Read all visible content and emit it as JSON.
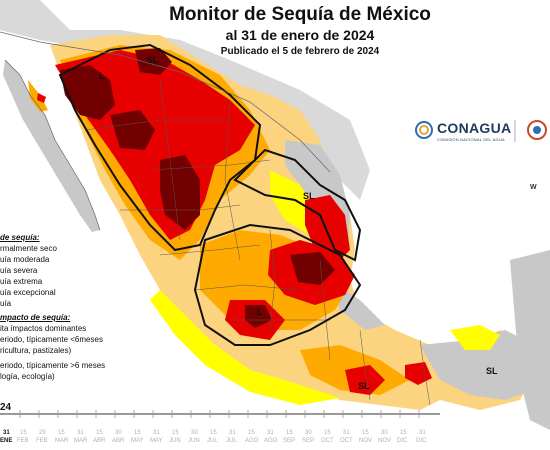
{
  "header": {
    "title": "Monitor de Sequía de México",
    "date": "al 31 de enero de 2024",
    "published": "Publicado el 5 de febrero de 2024"
  },
  "logo": {
    "name": "CONAGUA",
    "subtitle": "COMISIÓN NACIONAL DEL AGUA"
  },
  "legend": {
    "intensity_heading": "de sequía:",
    "intensity_items": [
      {
        "label": "rmalmente seco",
        "color": "#ffff00"
      },
      {
        "label": "uía moderada",
        "color": "#fcd37f"
      },
      {
        "label": "uía severa",
        "color": "#ffaa00"
      },
      {
        "label": "uía extrema",
        "color": "#e60000"
      },
      {
        "label": "uía excepcional",
        "color": "#730000"
      },
      {
        "label": "uía",
        "color": "#8a8a8a"
      }
    ],
    "impact_heading": "mpacto de sequía:",
    "impact_items": [
      "ita impactos dominantes",
      "eriodo, típicamente <6meses",
      "ricultura, pastizales)",
      "eriodo, típicamente >6 meses",
      "logía, ecología)"
    ]
  },
  "region_labels": [
    "L",
    "SL",
    "SL",
    "L",
    "SL",
    "SL"
  ],
  "wmark": "W",
  "timeline": {
    "year": "24",
    "day": "31",
    "current_month": "ENE",
    "months": [
      "FEB",
      "FEB",
      "MAR",
      "MAR",
      "ABR",
      "ABR",
      "MAY",
      "MAY",
      "JUN",
      "JUN",
      "JUL",
      "JUL",
      "AGO",
      "AGO",
      "SEP",
      "SEP",
      "OCT",
      "OCT",
      "NOV",
      "NOV",
      "DIC",
      "DIC"
    ],
    "days": [
      "15",
      "29",
      "15",
      "31",
      "15",
      "30",
      "15",
      "31",
      "15",
      "30",
      "15",
      "31",
      "15",
      "31",
      "15",
      "30",
      "15",
      "31",
      "15",
      "30",
      "15",
      "31"
    ]
  },
  "colors": {
    "ocean": "#ffffff",
    "normal_dry": "#ffff00",
    "moderate": "#fcd37f",
    "severe": "#ffaa00",
    "extreme": "#e60000",
    "exceptional": "#730000",
    "no_drought": "#c8c8c8"
  }
}
